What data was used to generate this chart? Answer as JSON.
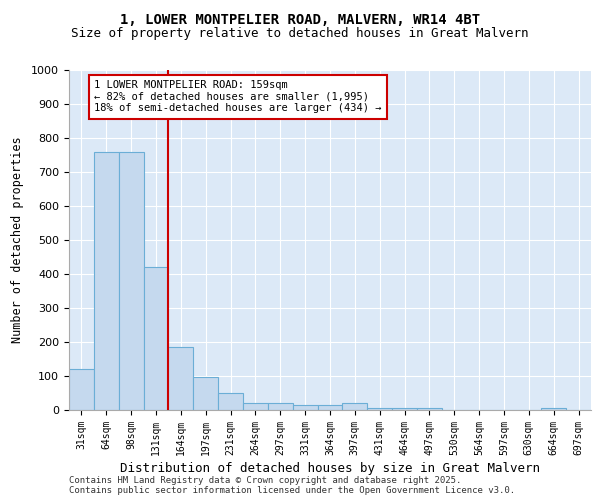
{
  "title_line1": "1, LOWER MONTPELIER ROAD, MALVERN, WR14 4BT",
  "title_line2": "Size of property relative to detached houses in Great Malvern",
  "xlabel": "Distribution of detached houses by size in Great Malvern",
  "ylabel": "Number of detached properties",
  "bar_labels": [
    "31sqm",
    "64sqm",
    "98sqm",
    "131sqm",
    "164sqm",
    "197sqm",
    "231sqm",
    "264sqm",
    "297sqm",
    "331sqm",
    "364sqm",
    "397sqm",
    "431sqm",
    "464sqm",
    "497sqm",
    "530sqm",
    "564sqm",
    "597sqm",
    "630sqm",
    "664sqm",
    "697sqm"
  ],
  "bar_values": [
    120,
    758,
    758,
    420,
    185,
    97,
    50,
    22,
    22,
    14,
    14,
    22,
    5,
    5,
    5,
    0,
    0,
    0,
    0,
    5,
    0
  ],
  "bar_color": "#c5d9ee",
  "bar_edge_color": "#6baed6",
  "vline_index": 4,
  "annotation_text": "1 LOWER MONTPELIER ROAD: 159sqm\n← 82% of detached houses are smaller (1,995)\n18% of semi-detached houses are larger (434) →",
  "annotation_box_color": "#ffffff",
  "annotation_box_edge": "#cc0000",
  "vline_color": "#cc0000",
  "ylim": [
    0,
    1000
  ],
  "yticks": [
    0,
    100,
    200,
    300,
    400,
    500,
    600,
    700,
    800,
    900,
    1000
  ],
  "background_color": "#dce9f7",
  "footer_line1": "Contains HM Land Registry data © Crown copyright and database right 2025.",
  "footer_line2": "Contains public sector information licensed under the Open Government Licence v3.0."
}
